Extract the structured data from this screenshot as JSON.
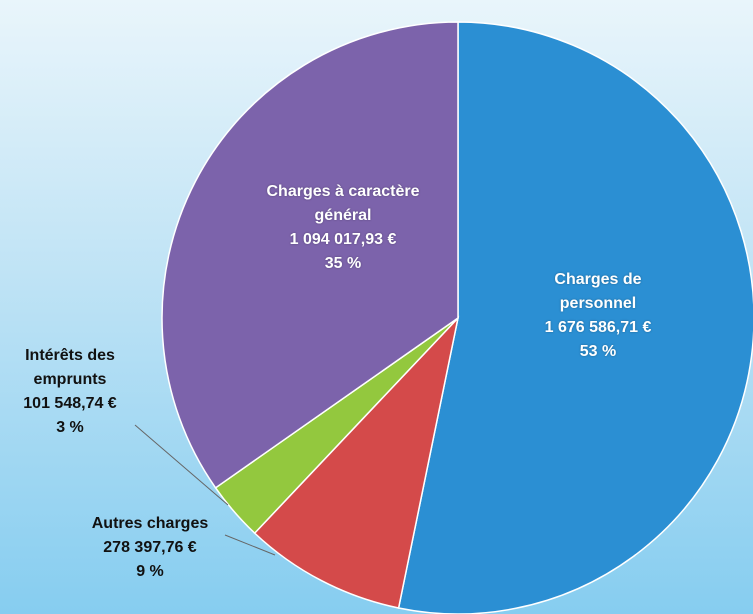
{
  "chart_data": {
    "type": "pie",
    "categories": [
      "Charges de personnel",
      "Autres charges",
      "Intérêts des emprunts",
      "Charges à caractère général"
    ],
    "values": [
      1676586.71,
      278397.76,
      101548.74,
      1094017.93
    ],
    "value_labels": [
      "1 676 586,71 €",
      "278 397,76 €",
      "101 548,74 €",
      "1 094 017,93 €"
    ],
    "percents": [
      53,
      9,
      3,
      35
    ],
    "percent_labels": [
      "53 %",
      "9 %",
      "3 %",
      "35 %"
    ],
    "colors": [
      "#2b8fd3",
      "#d44a4a",
      "#93c83e",
      "#7c63ab"
    ]
  }
}
